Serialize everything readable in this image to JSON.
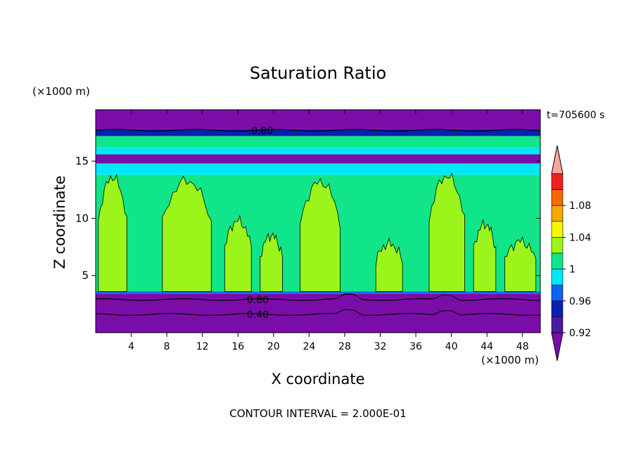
{
  "chart_data": {
    "type": "heatmap",
    "title": "Saturation Ratio",
    "xlabel": "X coordinate",
    "ylabel": "Z coordinate",
    "x_unit": "(×1000 m)",
    "y_unit": "(×1000 m)",
    "time_label": "t=705600 s",
    "footer": "CONTOUR INTERVAL = 2.000E-01",
    "xlim": [
      0,
      50
    ],
    "ylim": [
      0,
      19.5
    ],
    "x_ticks": [
      "4",
      "8",
      "12",
      "16",
      "20",
      "24",
      "28",
      "32",
      "36",
      "40",
      "44",
      "48"
    ],
    "y_ticks": [
      "5",
      "10",
      "15"
    ],
    "contour_labels": [
      {
        "text": "0.80",
        "x": 17.5,
        "z": 17.7
      },
      {
        "text": "0.80",
        "x": 17.0,
        "z": 2.9
      },
      {
        "text": "0.40",
        "x": 17.0,
        "z": 1.6
      }
    ],
    "colorbar": {
      "labels": [
        "1.08",
        "1.04",
        "1",
        "0.96",
        "0.92"
      ],
      "bins": [
        {
          "min": null,
          "max": 0.9,
          "color": "#7a0da8"
        },
        {
          "min": 0.9,
          "max": 0.92,
          "color": "#4c1aa8"
        },
        {
          "min": 0.92,
          "max": 0.94,
          "color": "#0c1fb0"
        },
        {
          "min": 0.94,
          "max": 0.96,
          "color": "#0f63f0"
        },
        {
          "min": 0.96,
          "max": 0.98,
          "color": "#00e8f5"
        },
        {
          "min": 0.98,
          "max": 1.0,
          "color": "#10e58a"
        },
        {
          "min": 1.0,
          "max": 1.02,
          "color": "#9cf51a"
        },
        {
          "min": 1.02,
          "max": 1.04,
          "color": "#f5f50a"
        },
        {
          "min": 1.04,
          "max": 1.06,
          "color": "#f5a800"
        },
        {
          "min": 1.06,
          "max": 1.08,
          "color": "#f56a00"
        },
        {
          "min": 1.08,
          "max": 1.1,
          "color": "#f02020"
        },
        {
          "min": 1.1,
          "max": null,
          "color": "#f5a8a0"
        }
      ]
    },
    "field_bands": [
      {
        "z_min": 0.0,
        "z_max": 3.4,
        "color": "#7a0da8"
      },
      {
        "z_min": 3.4,
        "z_max": 3.6,
        "color": "#0f63f0"
      },
      {
        "z_min": 3.6,
        "z_max": 13.8,
        "color": "#10e58a"
      },
      {
        "z_min": 13.8,
        "z_max": 14.8,
        "color": "#00e8f5"
      },
      {
        "z_min": 14.8,
        "z_max": 15.6,
        "color": "#7a0da8"
      },
      {
        "z_min": 15.6,
        "z_max": 16.2,
        "color": "#00e8f5"
      },
      {
        "z_min": 16.2,
        "z_max": 17.2,
        "color": "#10e58a"
      },
      {
        "z_min": 17.2,
        "z_max": 17.8,
        "color": "#0c1fb0"
      },
      {
        "z_min": 17.8,
        "z_max": 19.5,
        "color": "#7a0da8"
      }
    ],
    "supersaturated_plumes": [
      {
        "x0": 0.3,
        "x1": 3.5,
        "top": 13.6
      },
      {
        "x0": 7.5,
        "x1": 13.0,
        "top": 13.3
      },
      {
        "x0": 14.5,
        "x1": 17.5,
        "top": 9.8
      },
      {
        "x0": 18.5,
        "x1": 21.0,
        "top": 8.5
      },
      {
        "x0": 23.0,
        "x1": 27.5,
        "top": 13.2
      },
      {
        "x0": 31.5,
        "x1": 34.5,
        "top": 7.8
      },
      {
        "x0": 37.5,
        "x1": 41.5,
        "top": 13.7
      },
      {
        "x0": 42.5,
        "x1": 45.0,
        "top": 9.5
      },
      {
        "x0": 46.0,
        "x1": 49.5,
        "top": 8.0
      }
    ]
  }
}
